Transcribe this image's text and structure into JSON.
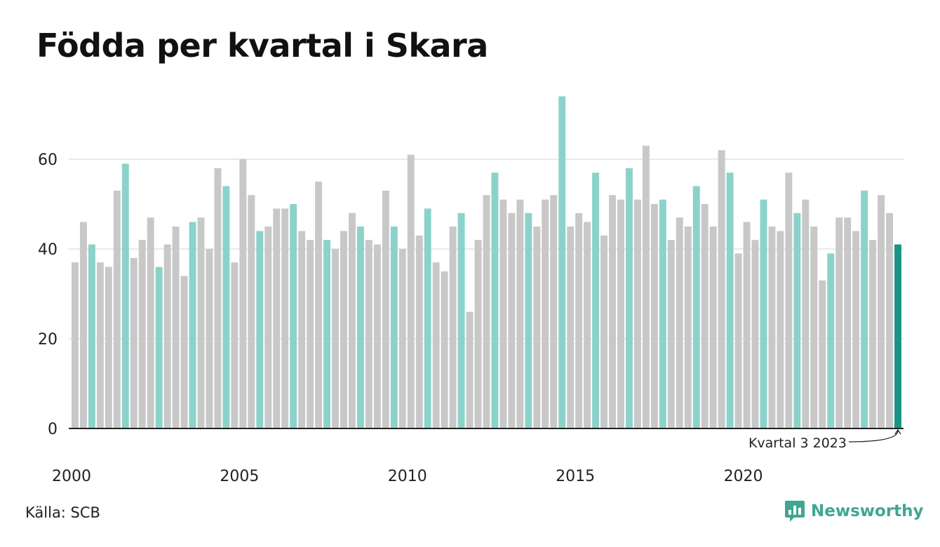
{
  "title": "Födda per kvartal i Skara",
  "source": "Källa: SCB",
  "brand": {
    "name": "Newsworthy",
    "icon": "newsworthy-logo-icon"
  },
  "colors": {
    "default": "#c8c8c8",
    "highlight": "#8bd3ca",
    "latest": "#1a9485",
    "grid": "#e2e2e2",
    "axis": "#222222"
  },
  "chart_data": {
    "type": "bar",
    "title": "Födda per kvartal i Skara",
    "x_start": "2000 Q1",
    "x_ticks": [
      "2000",
      "2005",
      "2010",
      "2015",
      "2020"
    ],
    "y_ticks": [
      "0",
      "20",
      "40",
      "60"
    ],
    "ylim": [
      0,
      75
    ],
    "grid": "horizontal",
    "highlight_quarter": "Q3",
    "values": [
      37,
      46,
      41,
      37,
      36,
      53,
      59,
      38,
      42,
      47,
      36,
      41,
      45,
      34,
      46,
      47,
      40,
      58,
      54,
      37,
      60,
      52,
      44,
      45,
      49,
      49,
      50,
      44,
      42,
      55,
      42,
      40,
      44,
      48,
      45,
      42,
      41,
      53,
      45,
      40,
      61,
      43,
      49,
      37,
      35,
      45,
      48,
      26,
      42,
      52,
      57,
      51,
      48,
      51,
      48,
      45,
      51,
      52,
      74,
      45,
      48,
      46,
      57,
      43,
      52,
      51,
      58,
      51,
      63,
      50,
      51,
      42,
      47,
      45,
      54,
      50,
      45,
      62,
      57,
      39,
      46,
      42,
      51,
      45,
      44,
      57,
      48,
      51,
      45,
      33,
      39,
      47,
      47,
      44,
      53,
      42,
      52,
      48,
      41
    ],
    "annotation": "Kvartal 3 2023"
  }
}
